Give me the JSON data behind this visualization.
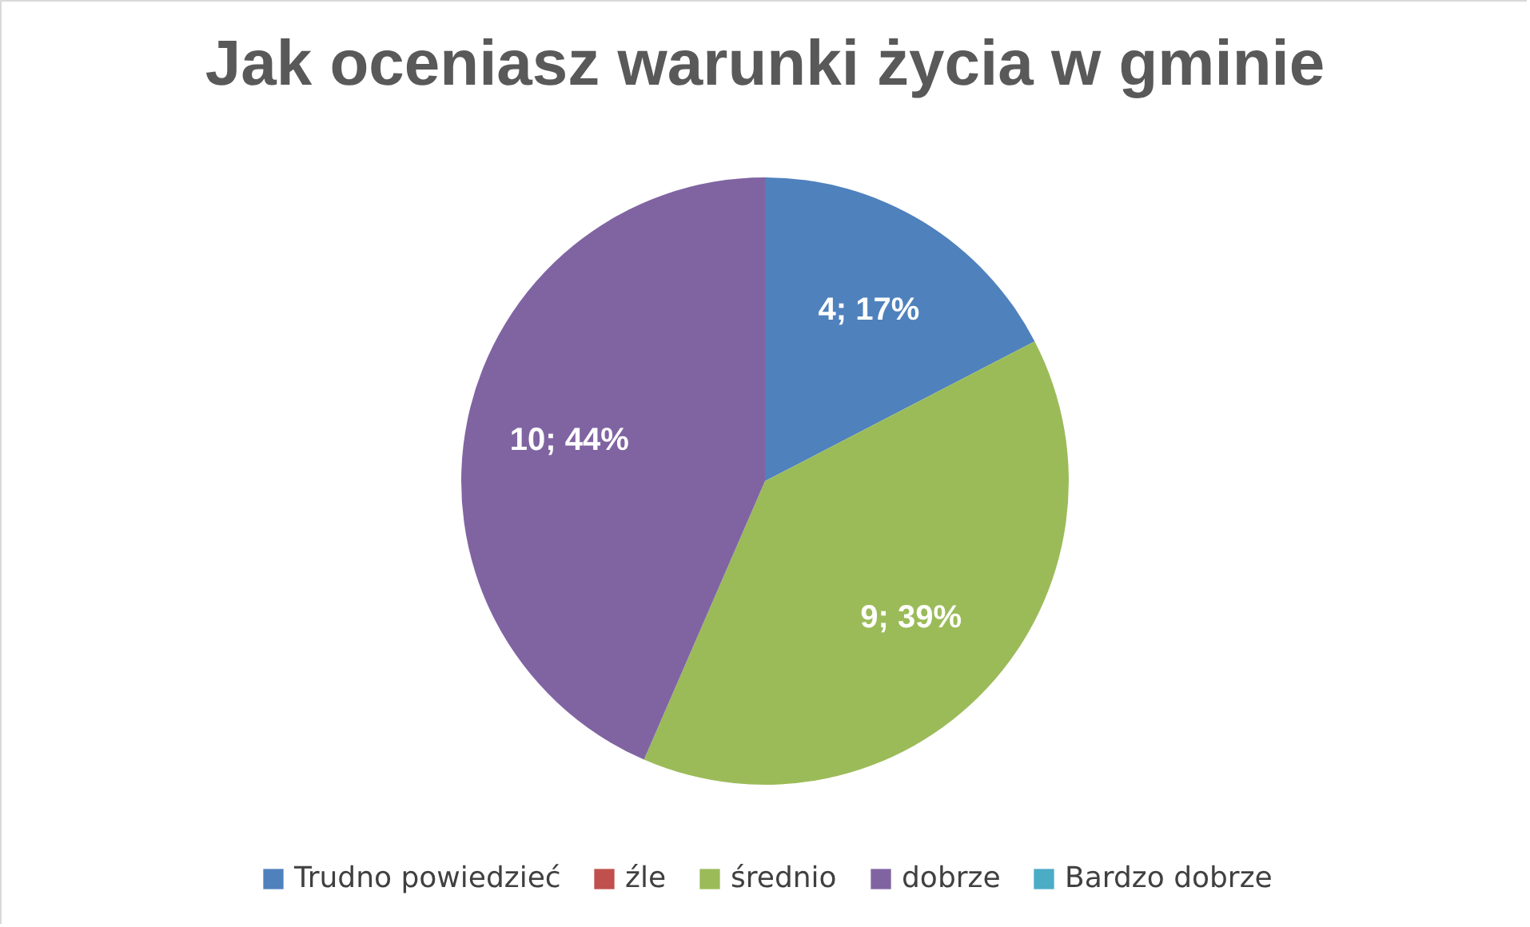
{
  "chart_data": {
    "type": "pie",
    "title": "Jak oceniasz warunki życia w gminie",
    "categories": [
      "Trudno powiedzieć",
      "źle",
      "średnio",
      "dobrze",
      "Bardzo dobrze"
    ],
    "values": [
      4,
      0,
      9,
      10,
      0
    ],
    "colors": [
      "#4f81bd",
      "#c0504d",
      "#9bbb59",
      "#8064a2",
      "#4bacc6"
    ],
    "value_labels": [
      "4; 17%",
      null,
      "9; 39%",
      "10; 44%",
      null
    ],
    "legend": "bottom"
  }
}
